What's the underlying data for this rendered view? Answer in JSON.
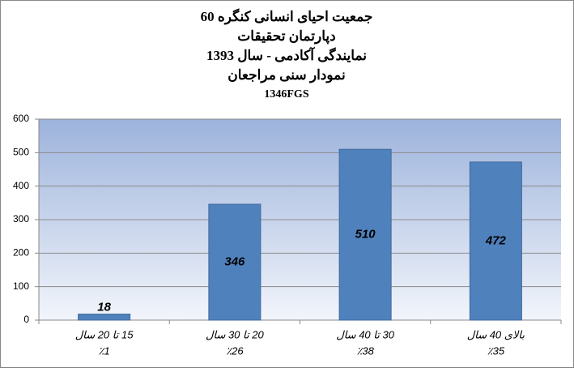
{
  "chart_data": {
    "type": "bar",
    "title": [
      "جمعیت احیای انسانی کنگره 60",
      "دپارتمان تحقیقات",
      "نمایندگی آکادمی -  سال 1393",
      "نمودار سنی مراجعان",
      "1346FGS"
    ],
    "categories": [
      "15 تا 20 سال",
      "20 تا 30 سال",
      "30 تا 40 سال",
      "بالای 40 سال"
    ],
    "percent_labels": [
      "٪1",
      "٪26",
      "٪38",
      "٪35"
    ],
    "values": [
      18,
      346,
      510,
      472
    ],
    "color": "#4f81bd",
    "ylim": [
      0,
      600
    ],
    "yticks": [
      0,
      100,
      200,
      300,
      400,
      500,
      600
    ],
    "grid": true
  }
}
